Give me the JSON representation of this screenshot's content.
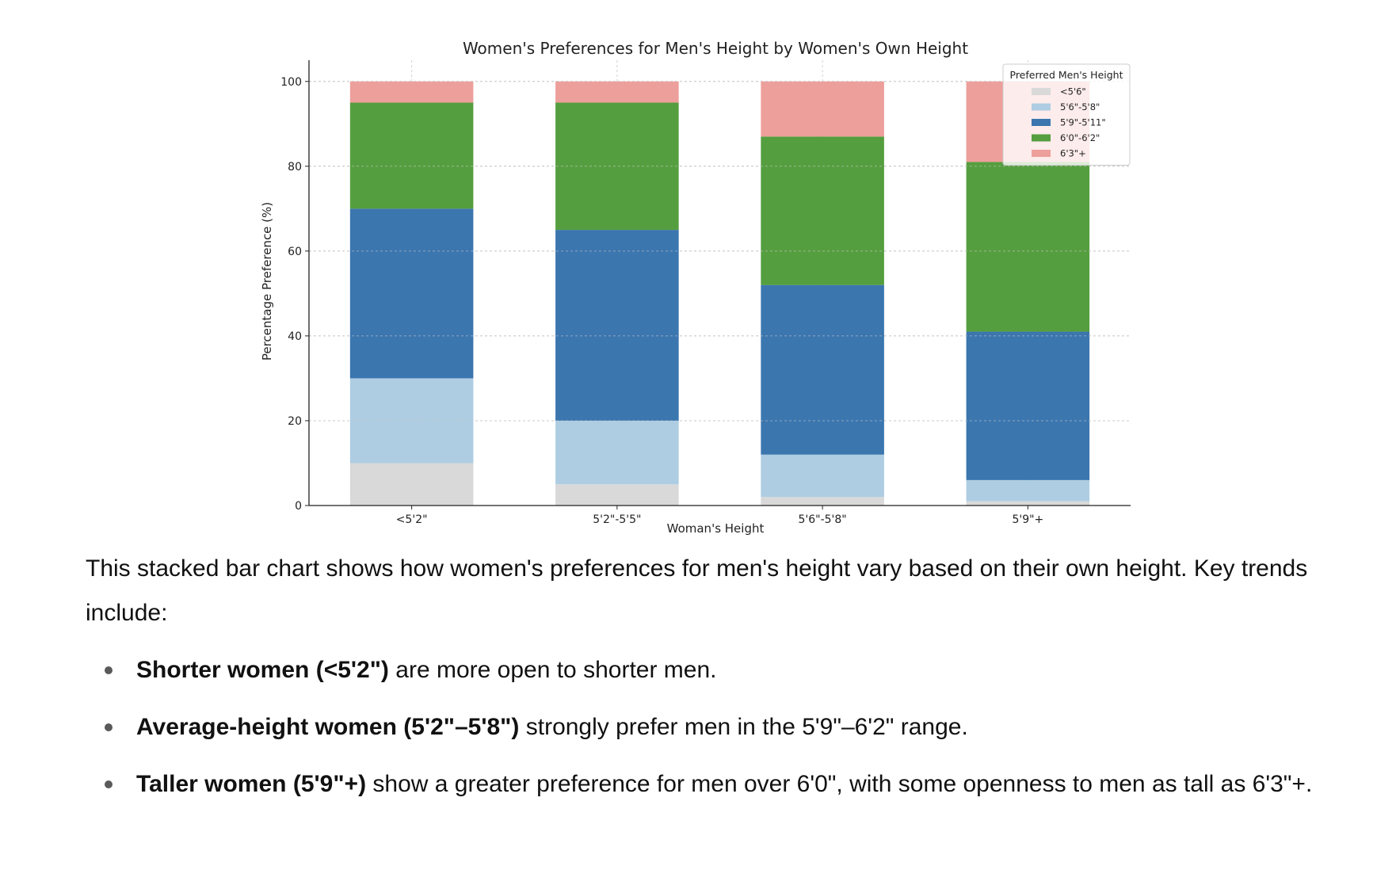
{
  "chart_data": {
    "type": "bar",
    "stacked": true,
    "title": "Women's Preferences for Men's Height by Women's Own Height",
    "xlabel": "Woman's Height",
    "ylabel": "Percentage Preference (%)",
    "ylim": [
      0,
      105
    ],
    "yticks": [
      0,
      20,
      40,
      60,
      80,
      100
    ],
    "grid": true,
    "legend": {
      "title": "Preferred Men's Height",
      "placement": "top-right"
    },
    "categories": [
      "<5'2\"",
      "5'2\"-5'5\"",
      "5'6\"-5'8\"",
      "5'9\"+"
    ],
    "series": [
      {
        "name": "<5'6\"",
        "color": "#d9d9d9",
        "values": [
          10,
          5,
          2,
          1
        ]
      },
      {
        "name": "5'6\"-5'8\"",
        "color": "#aecde2",
        "values": [
          20,
          15,
          10,
          5
        ]
      },
      {
        "name": "5'9\"-5'11\"",
        "color": "#3b76af",
        "values": [
          40,
          45,
          40,
          35
        ]
      },
      {
        "name": "6'0\"-6'2\"",
        "color": "#559e3f",
        "values": [
          25,
          30,
          35,
          40
        ]
      },
      {
        "name": "6'3\"+",
        "color": "#ed9f9b",
        "values": [
          5,
          5,
          13,
          19
        ]
      }
    ]
  },
  "text": {
    "intro": "This stacked bar chart shows how women's preferences for men's height vary based on their own height. Key trends include:",
    "bullets": [
      {
        "bold": "Shorter women (<5'2\")",
        "rest": " are more open to shorter men."
      },
      {
        "bold": "Average-height women (5'2\"–5'8\")",
        "rest": " strongly prefer men in the 5'9\"–6'2\" range."
      },
      {
        "bold": "Taller women (5'9\"+)",
        "rest": " show a greater preference for men over 6'0\", with some openness to men as tall as 6'3\"+."
      }
    ]
  }
}
